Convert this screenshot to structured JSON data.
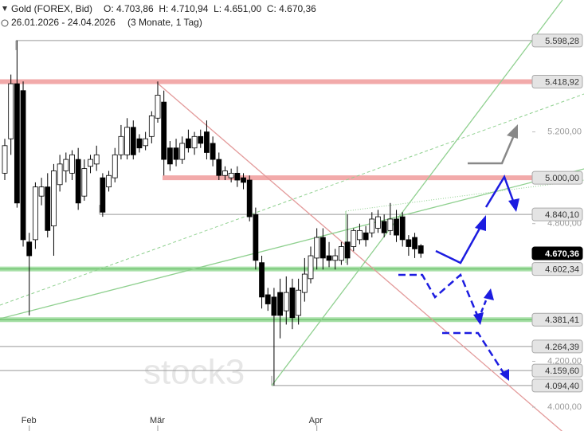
{
  "header": {
    "title": "Gold (FOREX, Bid)",
    "ohlc": "O: 4.703,86  H: 4.710,94  L: 4.651,00  C: 4.670,36",
    "range": "26.01.2026 - 24.04.2026",
    "period": "(3 Monate, 1 Tag)"
  },
  "watermark": "stock3",
  "chart_data": {
    "type": "candlestick",
    "categories": [
      null,
      null,
      null,
      null,
      "Feb",
      null,
      null,
      null,
      null,
      null,
      null,
      null,
      null,
      null,
      null,
      null,
      null,
      null,
      null,
      null,
      null,
      null,
      null,
      null,
      null,
      "Mär",
      null,
      null,
      null,
      null,
      null,
      null,
      null,
      null,
      null,
      null,
      null,
      null,
      null,
      null,
      null,
      null,
      null,
      null,
      null,
      null,
      null,
      null,
      null,
      null,
      null,
      "Apr",
      null,
      null,
      null,
      null,
      null,
      null,
      null,
      null,
      null,
      null,
      null,
      null,
      null,
      null,
      null,
      null,
      null
    ],
    "series": [
      {
        "name": "Gold",
        "open": [
          5020,
          5170,
          5410,
          5380,
          4720,
          4730,
          4920,
          4960,
          4790,
          4970,
          5030,
          5020,
          5080,
          4920,
          5050,
          5060,
          5000,
          4960,
          5000,
          5100,
          5100,
          5220,
          5170,
          5140,
          5180,
          5260,
          5330,
          5130,
          5130,
          5080,
          5170,
          5130,
          5180,
          5200,
          5150,
          5080,
          5010,
          5000,
          5020,
          5000,
          4990,
          4840,
          4630,
          4490,
          4480,
          4500,
          4420,
          4520,
          4400,
          4500,
          4560,
          4650,
          4740,
          4660,
          4640,
          4640,
          4720,
          4700,
          4730,
          4760,
          4760,
          4780,
          4810,
          4770,
          4820,
          4830,
          4730,
          4740,
          4703.86
        ],
        "high": [
          5170,
          5450,
          5598.28,
          5420,
          4760,
          4980,
          5000,
          5020,
          5060,
          5100,
          5110,
          5120,
          5130,
          5080,
          5100,
          5140,
          5020,
          5030,
          5130,
          5230,
          5260,
          5250,
          5190,
          5200,
          5290,
          5420,
          5380,
          5160,
          5170,
          5180,
          5210,
          5200,
          5210,
          5250,
          5180,
          5110,
          5050,
          5040,
          5050,
          5020,
          5010,
          4870,
          4660,
          4520,
          4520,
          4560,
          4570,
          4560,
          4560,
          4650,
          4700,
          4780,
          4780,
          4720,
          4690,
          4720,
          4840,
          4780,
          4800,
          4790,
          4850,
          4860,
          4840,
          4890,
          4860,
          4850,
          4750,
          4760,
          4710.94
        ],
        "low": [
          4990,
          5100,
          4870,
          4700,
          4400,
          4690,
          4880,
          4740,
          4660,
          4940,
          4980,
          4990,
          4860,
          4900,
          5020,
          5030,
          4830,
          4940,
          4980,
          5080,
          5080,
          5080,
          5110,
          5120,
          5150,
          5240,
          5010,
          5030,
          5050,
          5060,
          5110,
          5100,
          5130,
          5080,
          5050,
          4990,
          4990,
          4980,
          4960,
          4950,
          4810,
          4600,
          4430,
          4420,
          4094.4,
          4300,
          4360,
          4340,
          4360,
          4460,
          4540,
          4600,
          4600,
          4610,
          4600,
          4620,
          4620,
          4680,
          4710,
          4700,
          4740,
          4760,
          4740,
          4750,
          4720,
          4700,
          4660,
          4650,
          4651.0
        ],
        "close": [
          5140,
          5410,
          4890,
          4730,
          4660,
          4960,
          4960,
          4770,
          5030,
          5060,
          5080,
          5100,
          4890,
          5040,
          5080,
          5100,
          4850,
          5010,
          5100,
          5180,
          5220,
          5100,
          5130,
          5170,
          5270,
          5360,
          5080,
          5060,
          5080,
          5150,
          5130,
          5180,
          5150,
          5110,
          5080,
          5010,
          5030,
          5020,
          4990,
          4980,
          4830,
          4640,
          4480,
          4450,
          4400,
          4400,
          4500,
          4390,
          4510,
          4580,
          4660,
          4740,
          4650,
          4640,
          4660,
          4700,
          4650,
          4770,
          4770,
          4730,
          4820,
          4830,
          4760,
          4820,
          4750,
          4730,
          4700,
          4690,
          4670.36
        ]
      }
    ],
    "ylim": [
      3896,
      5775
    ],
    "yticks": [
      {
        "value": 5200,
        "label": "5.200,00"
      },
      {
        "value": 5000,
        "label": "5.000,00"
      },
      {
        "value": 4800,
        "label": "4.800,00"
      },
      {
        "value": 4200,
        "label": "4.200,00"
      },
      {
        "value": 4000,
        "label": "4.000,00"
      }
    ],
    "levels": [
      {
        "value": 5598.28,
        "label": "5.598,28",
        "color": "#999999"
      },
      {
        "value": 5418.92,
        "label": "5.418,92",
        "color": "#f2aaaa"
      },
      {
        "value": 5000,
        "label": "5.000,00",
        "color": "#f2aaaa"
      },
      {
        "value": 4840.1,
        "label": "4.840,10",
        "color": "#999999"
      },
      {
        "value": 4602.34,
        "label": "4.602,34",
        "color": "#a8e0a8"
      },
      {
        "value": 4381.41,
        "label": "4.381,41",
        "color": "#a8e0a8"
      },
      {
        "value": 4264.39,
        "label": "4.264,39",
        "color": "#999999"
      },
      {
        "value": 4159.6,
        "label": "4.159,60",
        "color": "#999999"
      },
      {
        "value": 4094.4,
        "label": "4.094,40",
        "color": "#999999"
      },
      {
        "value": 4670.36,
        "label": "4.670,36",
        "color": "#000000"
      }
    ]
  }
}
